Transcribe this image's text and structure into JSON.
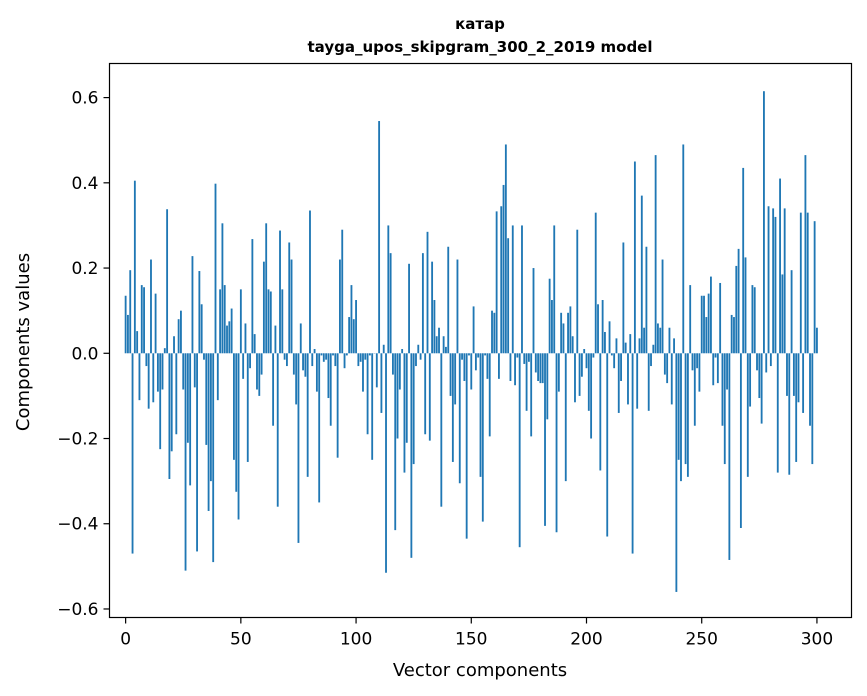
{
  "chart_data": {
    "type": "bar",
    "title_line1": "катар",
    "title_line2": "tayga_upos_skipgram_300_2_2019 model",
    "xlabel": "Vector components",
    "ylabel": "Components values",
    "xlim": [
      -7,
      315
    ],
    "ylim": [
      -0.62,
      0.68
    ],
    "xticks": [
      0,
      50,
      100,
      150,
      200,
      250,
      300
    ],
    "xtick_labels": [
      "0",
      "50",
      "100",
      "150",
      "200",
      "250",
      "300"
    ],
    "yticks": [
      -0.6,
      -0.4,
      -0.2,
      0.0,
      0.2,
      0.4,
      0.6
    ],
    "ytick_labels": [
      "−0.6",
      "−0.4",
      "−0.2",
      "0.0",
      "0.2",
      "0.4",
      "0.6"
    ],
    "bar_color": "#1f77b4",
    "values": [
      0.135,
      0.09,
      0.195,
      -0.47,
      0.405,
      0.052,
      -0.11,
      0.16,
      0.155,
      -0.03,
      -0.13,
      0.22,
      -0.115,
      0.14,
      -0.09,
      -0.225,
      -0.085,
      0.012,
      0.338,
      -0.295,
      -0.23,
      0.04,
      -0.19,
      0.08,
      0.1,
      -0.085,
      -0.51,
      -0.21,
      -0.31,
      0.228,
      -0.08,
      -0.465,
      0.193,
      0.115,
      -0.015,
      -0.215,
      -0.37,
      -0.3,
      -0.49,
      0.398,
      -0.11,
      0.15,
      0.305,
      0.16,
      0.065,
      0.075,
      0.105,
      -0.25,
      -0.325,
      -0.39,
      0.15,
      -0.06,
      0.07,
      -0.255,
      -0.035,
      0.268,
      0.045,
      -0.085,
      -0.1,
      -0.05,
      0.215,
      0.305,
      0.15,
      0.145,
      -0.17,
      0.065,
      -0.36,
      0.288,
      0.15,
      -0.015,
      -0.03,
      0.26,
      0.22,
      -0.05,
      -0.12,
      -0.445,
      0.07,
      -0.04,
      -0.055,
      -0.29,
      0.335,
      -0.03,
      0.01,
      -0.09,
      -0.35,
      -0.005,
      -0.02,
      -0.015,
      -0.105,
      -0.17,
      -0.005,
      -0.03,
      -0.245,
      0.22,
      0.29,
      -0.035,
      -0.005,
      0.085,
      0.16,
      0.08,
      0.125,
      -0.03,
      -0.02,
      -0.09,
      -0.015,
      -0.19,
      -0.005,
      -0.25,
      0.0,
      -0.08,
      0.545,
      -0.14,
      0.02,
      -0.515,
      0.3,
      0.235,
      -0.05,
      -0.415,
      -0.2,
      -0.085,
      0.01,
      -0.28,
      -0.21,
      0.21,
      -0.48,
      -0.26,
      -0.03,
      0.02,
      -0.015,
      0.235,
      -0.19,
      0.285,
      -0.205,
      0.215,
      0.125,
      0.04,
      0.06,
      -0.36,
      0.04,
      0.015,
      0.25,
      -0.1,
      -0.255,
      -0.12,
      0.22,
      -0.305,
      -0.015,
      -0.065,
      -0.435,
      -0.005,
      -0.085,
      0.11,
      -0.04,
      -0.01,
      -0.29,
      -0.395,
      -0.005,
      -0.06,
      -0.195,
      0.1,
      0.095,
      0.333,
      -0.06,
      0.345,
      0.395,
      0.49,
      0.27,
      -0.065,
      0.3,
      -0.075,
      -0.01,
      -0.455,
      0.3,
      -0.025,
      -0.135,
      -0.02,
      -0.195,
      0.2,
      -0.045,
      -0.065,
      -0.07,
      -0.07,
      -0.405,
      -0.155,
      0.175,
      0.125,
      0.3,
      -0.42,
      -0.09,
      0.095,
      0.07,
      -0.3,
      0.095,
      0.11,
      0.04,
      -0.115,
      0.29,
      -0.1,
      -0.055,
      0.01,
      -0.035,
      -0.135,
      -0.2,
      -0.01,
      0.33,
      0.115,
      -0.275,
      0.125,
      0.05,
      -0.43,
      0.075,
      -0.005,
      -0.035,
      0.035,
      -0.14,
      -0.065,
      0.26,
      0.025,
      -0.12,
      0.045,
      -0.47,
      0.45,
      -0.13,
      0.035,
      0.37,
      0.06,
      0.25,
      -0.135,
      -0.03,
      0.02,
      0.465,
      0.07,
      0.06,
      0.22,
      -0.05,
      -0.07,
      0.06,
      -0.12,
      0.035,
      -0.56,
      -0.25,
      -0.3,
      0.49,
      -0.26,
      -0.29,
      0.16,
      -0.04,
      -0.17,
      -0.035,
      -0.09,
      0.135,
      0.135,
      0.085,
      0.14,
      0.18,
      -0.075,
      -0.01,
      -0.07,
      0.165,
      -0.17,
      -0.26,
      -0.085,
      -0.485,
      0.09,
      0.085,
      0.205,
      0.245,
      -0.41,
      0.435,
      0.225,
      -0.29,
      -0.125,
      0.16,
      0.155,
      -0.04,
      -0.105,
      -0.165,
      0.615,
      -0.045,
      0.345,
      -0.03,
      0.34,
      0.32,
      -0.28,
      0.41,
      0.185,
      0.34,
      -0.1,
      -0.285,
      0.195,
      -0.1,
      -0.255,
      -0.115,
      0.33,
      -0.14,
      0.465,
      0.33,
      -0.17,
      -0.26,
      0.31,
      0.06
    ]
  }
}
